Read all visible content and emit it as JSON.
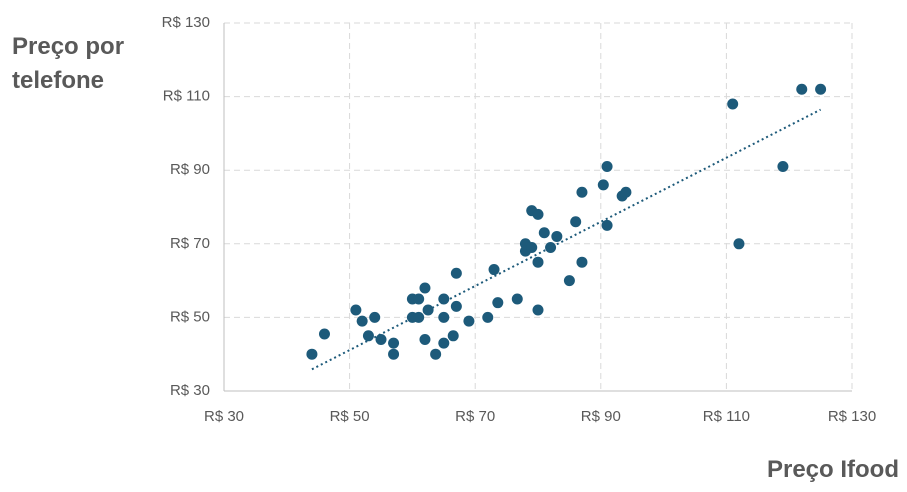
{
  "chart_data": {
    "type": "scatter",
    "x_label": "Preço Ifood",
    "y_label": "Preço por telefone",
    "color": "#1d5a7a",
    "grid": true,
    "trendline": true,
    "xlim": [
      30,
      130
    ],
    "ylim": [
      30,
      130
    ],
    "xticks": [
      {
        "value": 30,
        "label": "R$ 30"
      },
      {
        "value": 50,
        "label": "R$ 50"
      },
      {
        "value": 70,
        "label": "R$ 70"
      },
      {
        "value": 90,
        "label": "R$ 90"
      },
      {
        "value": 110,
        "label": "R$ 110"
      },
      {
        "value": 130,
        "label": "R$ 130"
      }
    ],
    "yticks": [
      {
        "value": 30,
        "label": "R$ 30"
      },
      {
        "value": 50,
        "label": "R$ 50"
      },
      {
        "value": 70,
        "label": "R$ 70"
      },
      {
        "value": 90,
        "label": "R$ 90"
      },
      {
        "value": 110,
        "label": "R$ 110"
      },
      {
        "value": 130,
        "label": "R$ 130"
      }
    ],
    "x": [
      44,
      46,
      51,
      52,
      53,
      54,
      55,
      57,
      57,
      60,
      61,
      60,
      61,
      62,
      62.5,
      62,
      63.7,
      65,
      65,
      65,
      67,
      67,
      66.5,
      69,
      72,
      73,
      73.6,
      76.7,
      78,
      78,
      79,
      79,
      80,
      80,
      80,
      81,
      82,
      83,
      85,
      86,
      87,
      87,
      90.4,
      91,
      91,
      93.4,
      94,
      111,
      112,
      119,
      122,
      125
    ],
    "values": [
      40,
      45.5,
      52,
      49,
      45,
      50,
      44,
      43,
      40,
      55,
      55,
      50,
      50,
      58,
      52,
      44,
      40,
      55,
      50,
      43,
      53,
      62,
      45,
      49,
      50,
      63,
      54,
      55,
      70,
      68,
      79,
      69,
      78,
      65,
      52,
      73,
      69,
      72,
      60,
      76,
      65,
      84,
      86,
      91,
      75,
      83,
      84,
      108,
      70,
      91,
      112,
      112
    ]
  }
}
